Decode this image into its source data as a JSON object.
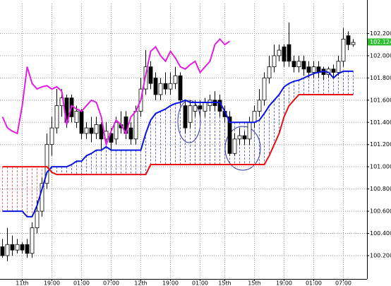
{
  "chart_data": {
    "type": "candlestick",
    "categories": [
      null,
      null,
      null,
      null,
      "11th",
      null,
      null,
      null,
      null,
      null,
      "19:00",
      null,
      null,
      null,
      null,
      null,
      "01:00",
      null,
      null,
      null,
      null,
      null,
      "07:00",
      null,
      null,
      null,
      null,
      null,
      "12th",
      null,
      null,
      null,
      null,
      null,
      "19:00",
      null,
      null,
      null,
      null,
      null,
      "01:00",
      null,
      null,
      null,
      null,
      "15th",
      null,
      null,
      null,
      null,
      null,
      "15th",
      null,
      null,
      null,
      null,
      null,
      "19:00",
      null,
      null,
      null,
      null,
      null,
      "01:00",
      null,
      null,
      null,
      null,
      null,
      "07:00",
      null,
      null
    ],
    "open": [
      100.28,
      100.2,
      100.3,
      100.25,
      100.3,
      100.3,
      100.22,
      100.45,
      100.6,
      100.85,
      101.2,
      101.35,
      101.55,
      101.62,
      101.62,
      101.4,
      101.5,
      101.3,
      101.35,
      101.3,
      101.38,
      101.25,
      101.3,
      101.25,
      101.38,
      101.45,
      101.35,
      101.25,
      101.5,
      101.7,
      101.9,
      101.8,
      101.65,
      101.75,
      101.7,
      101.75,
      101.82,
      101.55,
      101.4,
      101.5,
      101.55,
      101.5,
      101.55,
      101.6,
      101.6,
      101.5,
      101.45,
      101.12,
      101.25,
      101.28,
      101.25,
      101.4,
      101.5,
      101.6,
      101.8,
      101.9,
      102.0,
      102.08,
      102.1,
      101.95,
      101.9,
      101.95,
      101.9,
      101.85,
      101.9,
      101.88,
      101.83,
      101.88,
      101.85,
      101.95,
      102.18,
      102.1
    ],
    "high": [
      100.35,
      100.45,
      100.38,
      100.35,
      100.32,
      100.35,
      100.5,
      100.7,
      100.9,
      101.3,
      101.45,
      101.7,
      101.7,
      101.65,
      101.65,
      101.55,
      101.52,
      101.4,
      101.45,
      101.45,
      101.4,
      101.4,
      101.35,
      101.45,
      101.5,
      101.5,
      101.4,
      101.55,
      101.8,
      102.05,
      101.95,
      101.85,
      101.8,
      101.85,
      101.85,
      101.9,
      101.85,
      101.6,
      101.6,
      101.6,
      101.6,
      101.62,
      101.65,
      101.68,
      101.65,
      101.55,
      101.5,
      101.3,
      101.35,
      101.32,
      101.45,
      101.55,
      101.7,
      101.85,
      102.0,
      102.1,
      102.1,
      102.1,
      102.3,
      102.0,
      102.0,
      102.0,
      101.95,
      101.95,
      101.95,
      101.9,
      101.9,
      101.92,
      102.0,
      102.25,
      102.22,
      102.15
    ],
    "low": [
      100.18,
      100.15,
      100.2,
      100.22,
      100.22,
      100.18,
      100.18,
      100.4,
      100.55,
      100.8,
      101.1,
      101.3,
      101.45,
      101.35,
      101.4,
      101.35,
      101.25,
      101.25,
      101.22,
      101.25,
      101.15,
      101.2,
      101.15,
      101.2,
      101.3,
      101.25,
      101.2,
      101.2,
      101.45,
      101.65,
      101.7,
      101.6,
      101.6,
      101.65,
      101.65,
      101.7,
      101.55,
      101.3,
      101.35,
      101.45,
      101.45,
      101.45,
      101.5,
      101.5,
      101.45,
      101.4,
      101.1,
      101.1,
      101.2,
      101.2,
      101.2,
      101.35,
      101.45,
      101.55,
      101.75,
      101.85,
      101.95,
      101.9,
      101.9,
      101.85,
      101.85,
      101.82,
      101.8,
      101.8,
      101.8,
      101.78,
      101.8,
      101.8,
      101.82,
      101.9,
      102.05,
      102.08
    ],
    "close": [
      100.2,
      100.3,
      100.25,
      100.3,
      100.25,
      100.22,
      100.45,
      100.6,
      100.85,
      101.2,
      101.35,
      101.55,
      101.62,
      101.4,
      101.45,
      101.5,
      101.3,
      101.35,
      101.3,
      101.38,
      101.25,
      101.32,
      101.22,
      101.4,
      101.35,
      101.3,
      101.25,
      101.5,
      101.7,
      101.9,
      101.75,
      101.65,
      101.75,
      101.7,
      101.75,
      101.82,
      101.6,
      101.35,
      101.55,
      101.55,
      101.52,
      101.58,
      101.6,
      101.55,
      101.5,
      101.45,
      101.12,
      101.25,
      101.28,
      101.25,
      101.4,
      101.5,
      101.6,
      101.8,
      101.9,
      102.0,
      102.05,
      101.95,
      101.95,
      101.9,
      101.95,
      101.88,
      101.85,
      101.9,
      101.85,
      101.83,
      101.88,
      101.85,
      101.95,
      102.15,
      102.1,
      102.12
    ],
    "series": [
      {
        "color": "#e020e0",
        "values": [
          101.45,
          101.35,
          101.32,
          101.3,
          101.55,
          101.9,
          101.75,
          101.7,
          101.72,
          101.73,
          101.7,
          101.72,
          101.68,
          101.38,
          101.55,
          101.52,
          101.5,
          101.55,
          101.6,
          101.58,
          101.45,
          101.2,
          101.32,
          101.42,
          101.38,
          101.3,
          101.45,
          101.5,
          101.6,
          101.83,
          102.04,
          102.08,
          102.0,
          101.95,
          102.04,
          101.98,
          101.9,
          101.88,
          101.92,
          101.95,
          101.85,
          101.9,
          101.95,
          102.1,
          102.15,
          102.1,
          102.13,
          null,
          null,
          null,
          null,
          null,
          null,
          null,
          null,
          null,
          null,
          null,
          null,
          null,
          null,
          null,
          null,
          null,
          null,
          null,
          null,
          null,
          null,
          null,
          null,
          null
        ]
      },
      {
        "color": "#0a14e0",
        "values": [
          100.6,
          100.6,
          100.6,
          100.6,
          100.6,
          100.55,
          100.55,
          100.65,
          100.8,
          100.95,
          101.0,
          101.0,
          101.0,
          101.0,
          101.02,
          101.05,
          101.05,
          101.1,
          101.12,
          101.15,
          101.15,
          101.18,
          101.15,
          101.15,
          101.15,
          101.15,
          101.15,
          101.15,
          101.15,
          101.3,
          101.42,
          101.48,
          101.5,
          101.52,
          101.55,
          101.57,
          101.58,
          101.6,
          101.58,
          101.58,
          101.58,
          101.58,
          101.58,
          101.58,
          101.58,
          101.5,
          101.4,
          101.4,
          101.4,
          101.4,
          101.4,
          101.4,
          101.42,
          101.48,
          101.55,
          101.6,
          101.65,
          101.72,
          101.75,
          101.77,
          101.78,
          101.8,
          101.82,
          101.84,
          101.85,
          101.86,
          101.85,
          101.8,
          101.84,
          101.86,
          101.86,
          101.86
        ]
      },
      {
        "color": "#e81010",
        "values": [
          101.0,
          101.0,
          101.0,
          101.0,
          101.0,
          101.0,
          101.0,
          101.0,
          101.0,
          101.0,
          100.95,
          100.93,
          100.93,
          100.93,
          100.93,
          100.93,
          100.93,
          100.93,
          100.93,
          100.93,
          100.93,
          100.93,
          100.93,
          100.93,
          100.93,
          100.93,
          100.93,
          100.93,
          100.93,
          100.93,
          101.02,
          101.02,
          101.02,
          101.02,
          101.02,
          101.02,
          101.02,
          101.02,
          101.02,
          101.02,
          101.02,
          101.02,
          101.02,
          101.02,
          101.02,
          101.02,
          101.02,
          101.02,
          101.02,
          101.02,
          101.02,
          101.02,
          101.02,
          101.02,
          101.1,
          101.2,
          101.3,
          101.45,
          101.55,
          101.6,
          101.65,
          101.65,
          101.65,
          101.65,
          101.65,
          101.65,
          101.65,
          101.65,
          101.65,
          101.65,
          101.65,
          101.65
        ]
      }
    ],
    "ylim": [
      99.99,
      102.47
    ],
    "yticks": [
      {
        "value": 100.2,
        "label": "100.200"
      },
      {
        "value": 100.4,
        "label": "100.400"
      },
      {
        "value": 100.6,
        "label": "100.600"
      },
      {
        "value": 100.8,
        "label": "100.800"
      },
      {
        "value": 101.0,
        "label": "101.000"
      },
      {
        "value": 101.2,
        "label": "101.200"
      },
      {
        "value": 101.4,
        "label": "101.400"
      },
      {
        "value": 101.6,
        "label": "101.600"
      },
      {
        "value": 101.8,
        "label": "101.800"
      },
      {
        "value": 102.0,
        "label": "102.000"
      },
      {
        "value": 102.2,
        "label": "102.200"
      }
    ],
    "last_price": 102.124,
    "grid": true
  }
}
